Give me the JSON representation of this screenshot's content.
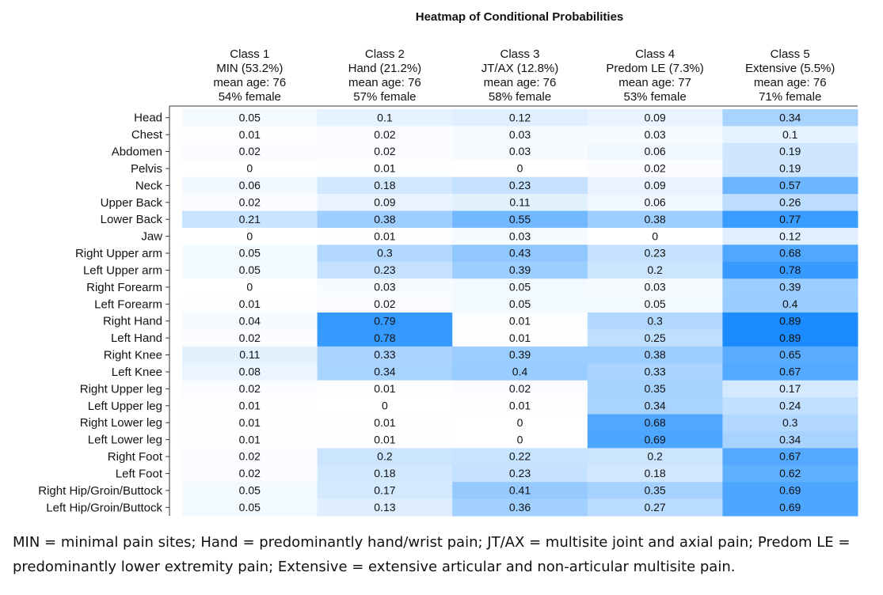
{
  "chart_data": {
    "type": "heatmap",
    "title": "Heatmap of Conditional Probabilities",
    "columns": [
      [
        "Class 1",
        "MIN (53.2%)",
        "mean age: 76",
        "54% female"
      ],
      [
        "Class 2",
        "Hand (21.2%)",
        "mean age: 76",
        "57% female"
      ],
      [
        "Class 3",
        "JT/AX (12.8%)",
        "mean age: 76",
        "58% female"
      ],
      [
        "Class 4",
        "Predom LE (7.3%)",
        "mean age: 77",
        "53% female"
      ],
      [
        "Class 5",
        "Extensive (5.5%)",
        "mean age: 76",
        "71% female"
      ]
    ],
    "rows": [
      "Head",
      "Chest",
      "Abdomen",
      "Pelvis",
      "Neck",
      "Upper Back",
      "Lower Back",
      "Jaw",
      "Right Upper arm",
      "Left Upper arm",
      "Right Forearm",
      "Left Forearm",
      "Right Hand",
      "Left Hand",
      "Right Knee",
      "Left Knee",
      "Right Upper leg",
      "Left Upper leg",
      "Right Lower leg",
      "Left Lower leg",
      "Right Foot",
      "Left Foot",
      "Right Hip/Groin/Buttock",
      "Left Hip/Groin/Buttock"
    ],
    "values": [
      [
        0.05,
        0.1,
        0.12,
        0.09,
        0.34
      ],
      [
        0.01,
        0.02,
        0.03,
        0.03,
        0.1
      ],
      [
        0.02,
        0.02,
        0.03,
        0.06,
        0.19
      ],
      [
        0,
        0.01,
        0,
        0.02,
        0.19
      ],
      [
        0.06,
        0.18,
        0.23,
        0.09,
        0.57
      ],
      [
        0.02,
        0.09,
        0.11,
        0.06,
        0.26
      ],
      [
        0.21,
        0.38,
        0.55,
        0.38,
        0.77
      ],
      [
        0,
        0.01,
        0.03,
        0,
        0.12
      ],
      [
        0.05,
        0.3,
        0.43,
        0.23,
        0.68
      ],
      [
        0.05,
        0.23,
        0.39,
        0.2,
        0.78
      ],
      [
        0,
        0.03,
        0.05,
        0.03,
        0.39
      ],
      [
        0.01,
        0.02,
        0.05,
        0.05,
        0.4
      ],
      [
        0.04,
        0.79,
        0.01,
        0.3,
        0.89
      ],
      [
        0.02,
        0.78,
        0.01,
        0.25,
        0.89
      ],
      [
        0.11,
        0.33,
        0.39,
        0.38,
        0.65
      ],
      [
        0.08,
        0.34,
        0.4,
        0.33,
        0.67
      ],
      [
        0.02,
        0.01,
        0.02,
        0.35,
        0.17
      ],
      [
        0.01,
        0,
        0.01,
        0.34,
        0.24
      ],
      [
        0.01,
        0.01,
        0,
        0.68,
        0.3
      ],
      [
        0.01,
        0.01,
        0,
        0.69,
        0.34
      ],
      [
        0.02,
        0.2,
        0.22,
        0.2,
        0.67
      ],
      [
        0.02,
        0.18,
        0.23,
        0.18,
        0.62
      ],
      [
        0.05,
        0.17,
        0.41,
        0.35,
        0.69
      ],
      [
        0.05,
        0.13,
        0.36,
        0.27,
        0.69
      ]
    ],
    "colors": [
      "#ffffff",
      "#1a8cff"
    ],
    "caption": "MIN = minimal pain sites; Hand = predominantly hand/wrist pain; JT/AX = multisite joint and axial pain; Predom LE = predominantly lower extremity pain; Extensive = extensive articular and non-articular multisite pain."
  }
}
